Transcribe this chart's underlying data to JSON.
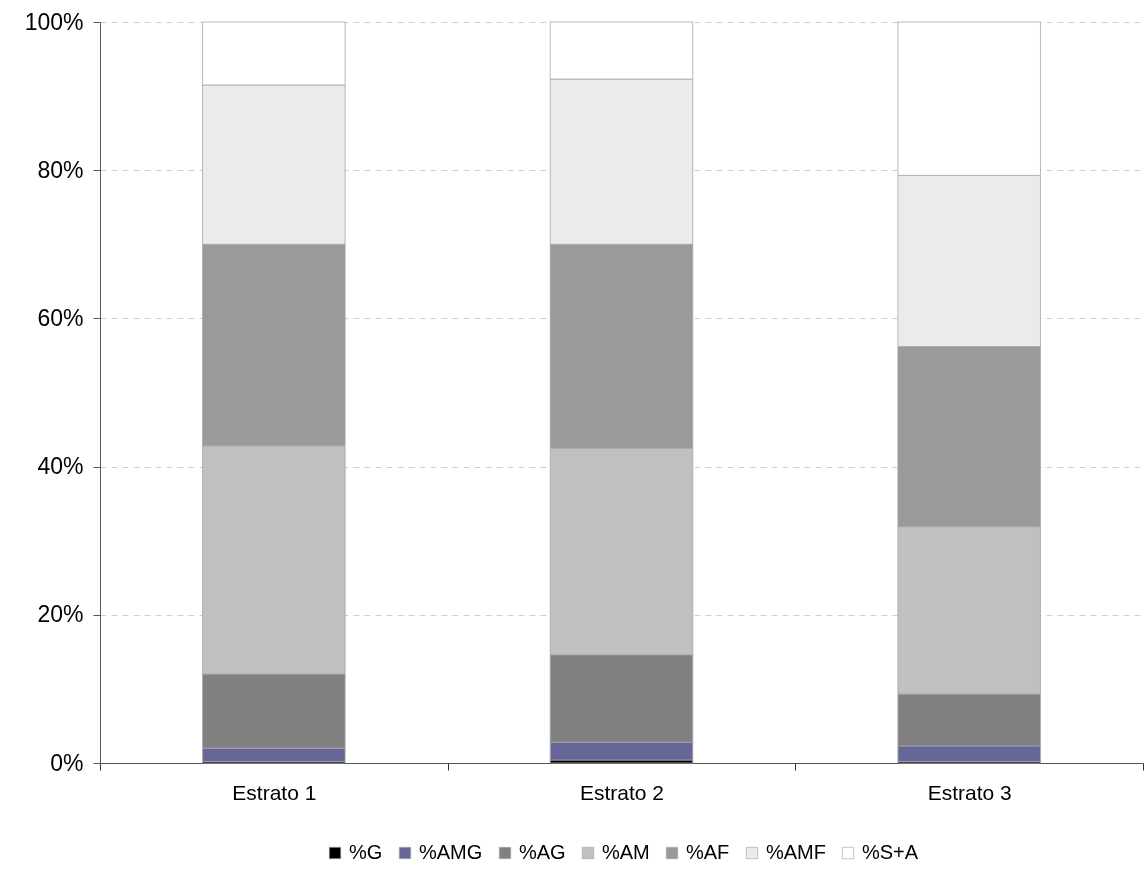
{
  "chart_data": {
    "type": "bar",
    "stacked": true,
    "categories": [
      "Estrato 1",
      "Estrato 2",
      "Estrato 3"
    ],
    "series": [
      {
        "name": "%G",
        "color": "#000000",
        "values": [
          0.2,
          0.4,
          0.2
        ]
      },
      {
        "name": "%AMG",
        "color": "#666699",
        "values": [
          1.8,
          2.4,
          2.1
        ]
      },
      {
        "name": "%AG",
        "color": "#808080",
        "values": [
          10.0,
          11.8,
          7.0
        ]
      },
      {
        "name": "%AM",
        "color": "#c0c0c0",
        "values": [
          30.8,
          27.9,
          22.6
        ]
      },
      {
        "name": "%AF",
        "color": "#9a9a9a",
        "values": [
          27.2,
          27.5,
          24.3
        ]
      },
      {
        "name": "%AMF",
        "color": "#ebebeb",
        "values": [
          21.5,
          22.3,
          23.1
        ]
      },
      {
        "name": "%S+A",
        "color": "#ffffff",
        "values": [
          8.5,
          7.7,
          20.7
        ]
      }
    ],
    "ylim": [
      0,
      100
    ],
    "yticks": [
      {
        "value": 0,
        "label": "0%"
      },
      {
        "value": 20,
        "label": "20%"
      },
      {
        "value": 40,
        "label": "40%"
      },
      {
        "value": 60,
        "label": "60%"
      },
      {
        "value": 80,
        "label": "80%"
      },
      {
        "value": 100,
        "label": "100%"
      }
    ],
    "grid": "y",
    "legend": "bottom"
  }
}
